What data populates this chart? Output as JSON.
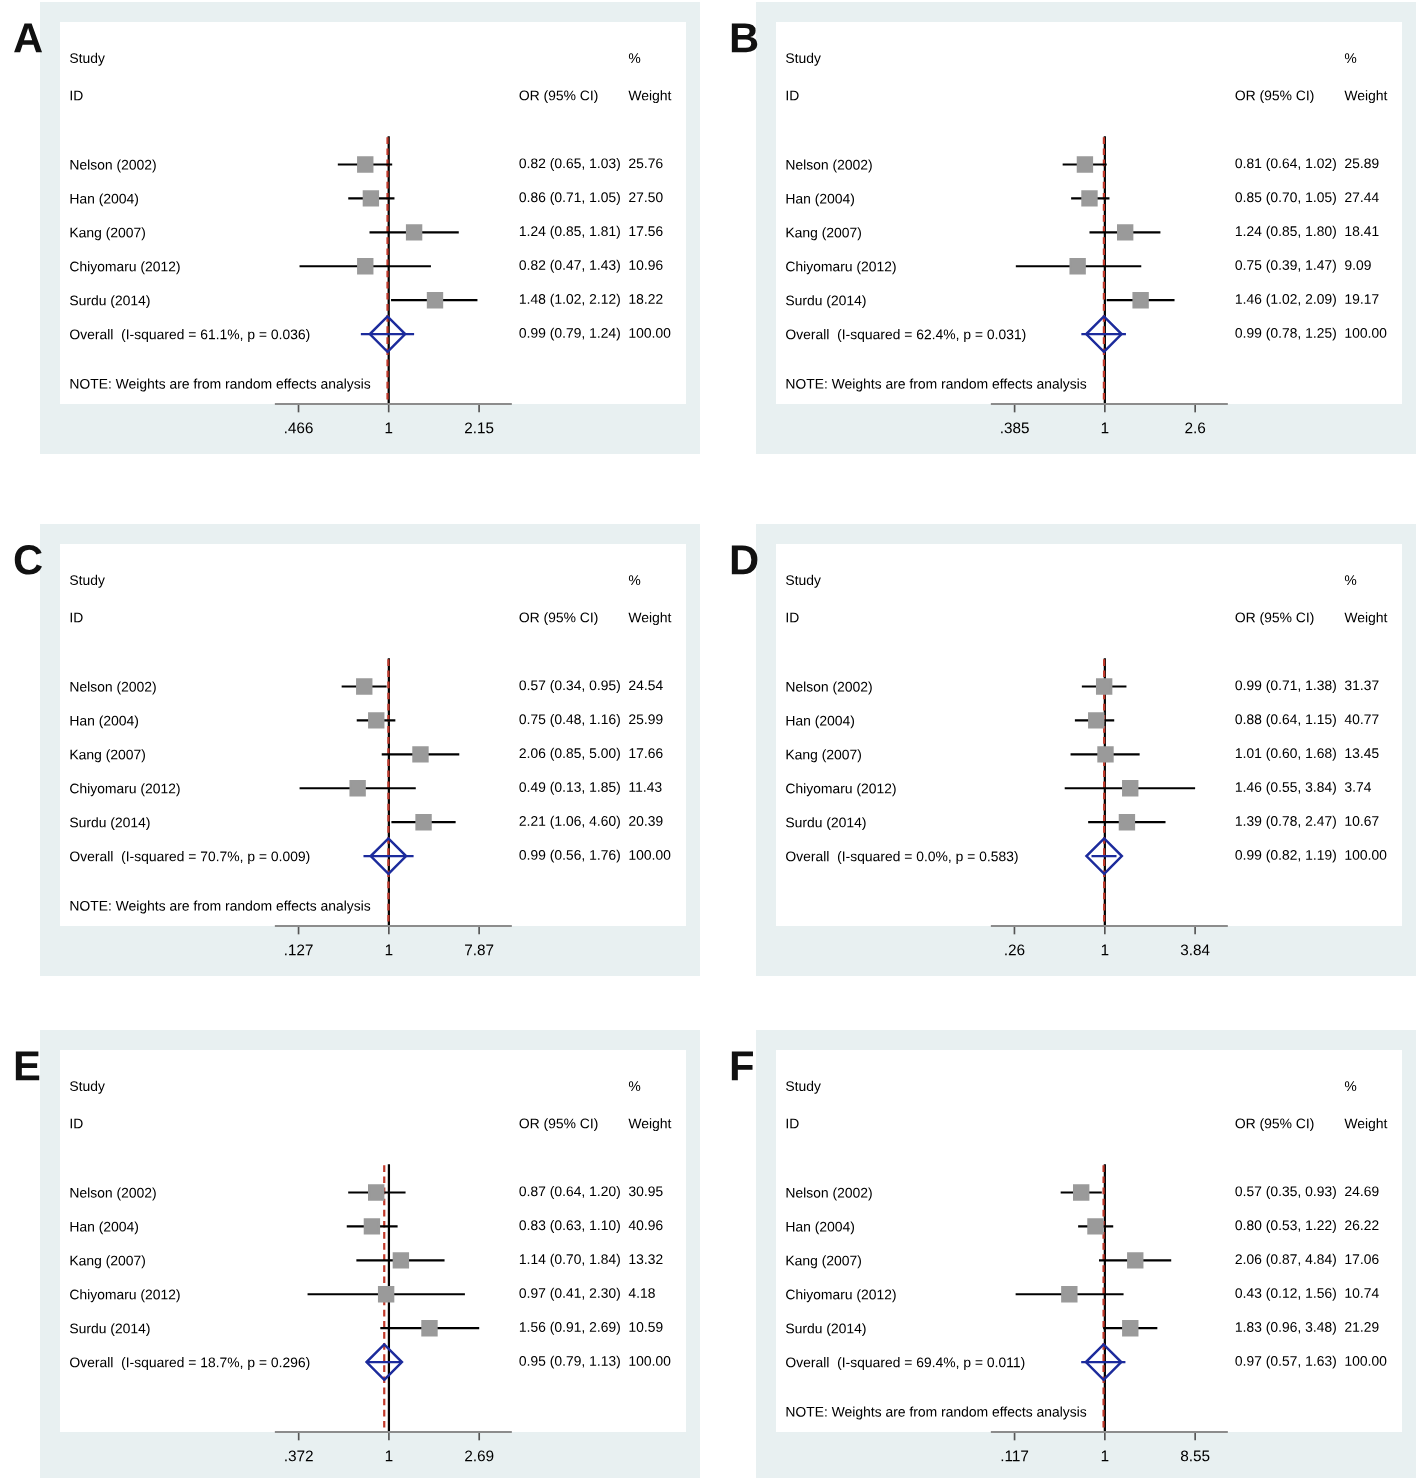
{
  "chart_data": [
    {
      "type": "scatter",
      "title": "A",
      "orientation": "horizontal",
      "log": "x",
      "xlim": [
        0.385,
        2.81
      ],
      "xticks": [
        {
          "value": 0.466,
          "label": ".466"
        },
        1,
        2.15
      ],
      "categories": [
        "Nelson (2002)",
        "Han (2004)",
        "Kang (2007)",
        "Chiyomaru (2012)",
        "Surdu (2014)",
        "Overall  (I-squared = 61.1%, p = 0.036)"
      ],
      "series": [
        {
          "color": "#9a9a9a",
          "marker": "square",
          "values": [
            0.82,
            0.86,
            1.24,
            0.82,
            1.48,
            null
          ],
          "errors": [
            [
              0.65,
              1.03
            ],
            [
              0.71,
              1.05
            ],
            [
              0.85,
              1.81
            ],
            [
              0.47,
              1.43
            ],
            [
              1.02,
              2.12
            ],
            null
          ],
          "value_labels": [
            "0.82 (0.65, 1.03)",
            "0.86 (0.71, 1.05)",
            "1.24 (0.85, 1.81)",
            "0.82 (0.47, 1.43)",
            "1.48 (1.02, 2.12)",
            null
          ]
        },
        {
          "color": "#1c2b9c",
          "marker": "diamond",
          "values": [
            null,
            null,
            null,
            null,
            null,
            0.99
          ],
          "errors": [
            null,
            null,
            null,
            null,
            null,
            [
              0.79,
              1.24
            ]
          ]
        }
      ],
      "ref_lines": [
        {
          "axis": "x",
          "value": 1,
          "color": "#000000",
          "line_style": "solid"
        },
        {
          "axis": "x",
          "value": 0.99,
          "color": "#c0392b",
          "line_style": "dashed"
        }
      ],
      "annotations": [
        "Study",
        "%",
        "ID",
        "OR (95% CI)",
        "Weight",
        "25.76",
        "27.50",
        "17.56",
        "10.96",
        "18.22",
        "100.00",
        "0.99 (0.79, 1.24)",
        "NOTE: Weights are from random effects analysis"
      ]
    },
    {
      "type": "scatter",
      "title": "B",
      "orientation": "horizontal",
      "log": "x",
      "xlim": [
        0.303,
        3.63
      ],
      "xticks": [
        {
          "value": 0.385,
          "label": ".385"
        },
        1,
        2.6
      ],
      "categories": [
        "Nelson (2002)",
        "Han (2004)",
        "Kang (2007)",
        "Chiyomaru (2012)",
        "Surdu (2014)",
        "Overall  (I-squared = 62.4%, p = 0.031)"
      ],
      "series": [
        {
          "color": "#9a9a9a",
          "marker": "square",
          "values": [
            0.81,
            0.85,
            1.24,
            0.75,
            1.46,
            null
          ],
          "errors": [
            [
              0.64,
              1.02
            ],
            [
              0.7,
              1.05
            ],
            [
              0.85,
              1.8
            ],
            [
              0.39,
              1.47
            ],
            [
              1.02,
              2.09
            ],
            null
          ],
          "value_labels": [
            "0.81 (0.64, 1.02)",
            "0.85 (0.70, 1.05)",
            "1.24 (0.85, 1.80)",
            "0.75 (0.39, 1.47)",
            "1.46 (1.02, 2.09)",
            null
          ]
        },
        {
          "color": "#1c2b9c",
          "marker": "diamond",
          "values": [
            null,
            null,
            null,
            null,
            null,
            0.99
          ],
          "errors": [
            null,
            null,
            null,
            null,
            null,
            [
              0.78,
              1.25
            ]
          ]
        }
      ],
      "ref_lines": [
        {
          "axis": "x",
          "value": 1,
          "color": "#000000",
          "line_style": "solid"
        },
        {
          "axis": "x",
          "value": 0.99,
          "color": "#c0392b",
          "line_style": "dashed"
        }
      ],
      "annotations": [
        "Study",
        "%",
        "ID",
        "OR (95% CI)",
        "Weight",
        "25.89",
        "27.44",
        "18.41",
        "9.09",
        "19.17",
        "100.00",
        "0.99 (0.78, 1.25)",
        "NOTE: Weights are from random effects analysis"
      ]
    },
    {
      "type": "scatter",
      "title": "C",
      "orientation": "horizontal",
      "log": "x",
      "xlim": [
        0.0758,
        16.2
      ],
      "xticks": [
        {
          "value": 0.127,
          "label": ".127"
        },
        1,
        7.87
      ],
      "categories": [
        "Nelson (2002)",
        "Han (2004)",
        "Kang (2007)",
        "Chiyomaru (2012)",
        "Surdu (2014)",
        "Overall  (I-squared = 70.7%, p = 0.009)"
      ],
      "series": [
        {
          "color": "#9a9a9a",
          "marker": "square",
          "values": [
            0.57,
            0.75,
            2.06,
            0.49,
            2.21,
            null
          ],
          "errors": [
            [
              0.34,
              0.95
            ],
            [
              0.48,
              1.16
            ],
            [
              0.85,
              5.0
            ],
            [
              0.13,
              1.85
            ],
            [
              1.06,
              4.6
            ],
            null
          ],
          "value_labels": [
            "0.57 (0.34, 0.95)",
            "0.75 (0.48, 1.16)",
            "2.06 (0.85, 5.00)",
            "0.49 (0.13, 1.85)",
            "2.21 (1.06, 4.60)",
            null
          ]
        },
        {
          "color": "#1c2b9c",
          "marker": "diamond",
          "values": [
            null,
            null,
            null,
            null,
            null,
            0.99
          ],
          "errors": [
            null,
            null,
            null,
            null,
            null,
            [
              0.56,
              1.76
            ]
          ]
        }
      ],
      "ref_lines": [
        {
          "axis": "x",
          "value": 1,
          "color": "#000000",
          "line_style": "solid"
        },
        {
          "axis": "x",
          "value": 0.99,
          "color": "#c0392b",
          "line_style": "dashed"
        }
      ],
      "annotations": [
        "Study",
        "%",
        "ID",
        "OR (95% CI)",
        "Weight",
        "24.54",
        "25.99",
        "17.66",
        "11.43",
        "20.39",
        "100.00",
        "0.99 (0.56, 1.76)",
        "NOTE: Weights are from random effects analysis"
      ]
    },
    {
      "type": "scatter",
      "title": "D",
      "orientation": "horizontal",
      "log": "x",
      "xlim": [
        0.186,
        6.15
      ],
      "xticks": [
        {
          "value": 0.26,
          "label": ".26"
        },
        1,
        3.84
      ],
      "categories": [
        "Nelson (2002)",
        "Han (2004)",
        "Kang (2007)",
        "Chiyomaru (2012)",
        "Surdu (2014)",
        "Overall  (I-squared = 0.0%, p = 0.583)"
      ],
      "series": [
        {
          "color": "#9a9a9a",
          "marker": "square",
          "values": [
            0.99,
            0.88,
            1.01,
            1.46,
            1.39,
            null
          ],
          "errors": [
            [
              0.71,
              1.38
            ],
            [
              0.64,
              1.15
            ],
            [
              0.6,
              1.68
            ],
            [
              0.55,
              3.84
            ],
            [
              0.78,
              2.47
            ],
            null
          ],
          "value_labels": [
            "0.99 (0.71, 1.38)",
            "0.88 (0.64, 1.15)",
            "1.01 (0.60, 1.68)",
            "1.46 (0.55, 3.84)",
            "1.39 (0.78, 2.47)",
            null
          ]
        },
        {
          "color": "#1c2b9c",
          "marker": "diamond",
          "values": [
            null,
            null,
            null,
            null,
            null,
            0.99
          ],
          "errors": [
            null,
            null,
            null,
            null,
            null,
            [
              0.82,
              1.19
            ]
          ]
        }
      ],
      "ref_lines": [
        {
          "axis": "x",
          "value": 1,
          "color": "#000000",
          "line_style": "solid"
        },
        {
          "axis": "x",
          "value": 0.99,
          "color": "#c0392b",
          "line_style": "dashed"
        }
      ],
      "annotations": [
        "Study",
        "%",
        "ID",
        "OR (95% CI)",
        "Weight",
        "31.37",
        "40.77",
        "13.45",
        "3.74",
        "10.67",
        "100.00",
        "0.99 (0.82, 1.19)"
      ]
    },
    {
      "type": "scatter",
      "title": "E",
      "orientation": "horizontal",
      "log": "x",
      "xlim": [
        0.29,
        3.8
      ],
      "xticks": [
        {
          "value": 0.372,
          "label": ".372"
        },
        1,
        2.69
      ],
      "categories": [
        "Nelson (2002)",
        "Han (2004)",
        "Kang (2007)",
        "Chiyomaru (2012)",
        "Surdu (2014)",
        "Overall  (I-squared = 18.7%, p = 0.296)"
      ],
      "series": [
        {
          "color": "#9a9a9a",
          "marker": "square",
          "values": [
            0.87,
            0.83,
            1.14,
            0.97,
            1.56,
            null
          ],
          "errors": [
            [
              0.64,
              1.2
            ],
            [
              0.63,
              1.1
            ],
            [
              0.7,
              1.84
            ],
            [
              0.41,
              2.3
            ],
            [
              0.91,
              2.69
            ],
            null
          ],
          "value_labels": [
            "0.87 (0.64, 1.20)",
            "0.83 (0.63, 1.10)",
            "1.14 (0.70, 1.84)",
            "0.97 (0.41, 2.30)",
            "1.56 (0.91, 2.69)",
            null
          ]
        },
        {
          "color": "#1c2b9c",
          "marker": "diamond",
          "values": [
            null,
            null,
            null,
            null,
            null,
            0.95
          ],
          "errors": [
            null,
            null,
            null,
            null,
            null,
            [
              0.79,
              1.13
            ]
          ]
        }
      ],
      "ref_lines": [
        {
          "axis": "x",
          "value": 1,
          "color": "#000000",
          "line_style": "solid"
        },
        {
          "axis": "x",
          "value": 0.95,
          "color": "#c0392b",
          "line_style": "dashed"
        }
      ],
      "annotations": [
        "Study",
        "%",
        "ID",
        "OR (95% CI)",
        "Weight",
        "30.95",
        "40.96",
        "13.32",
        "4.18",
        "10.59",
        "100.00",
        "0.95 (0.79, 1.13)"
      ]
    },
    {
      "type": "scatter",
      "title": "F",
      "orientation": "horizontal",
      "log": "x",
      "xlim": [
        0.0684,
        18.1
      ],
      "xticks": [
        {
          "value": 0.117,
          "label": ".117"
        },
        1,
        8.55
      ],
      "categories": [
        "Nelson (2002)",
        "Han (2004)",
        "Kang (2007)",
        "Chiyomaru (2012)",
        "Surdu (2014)",
        "Overall  (I-squared = 69.4%, p = 0.011)"
      ],
      "series": [
        {
          "color": "#9a9a9a",
          "marker": "square",
          "values": [
            0.57,
            0.8,
            2.06,
            0.43,
            1.83,
            null
          ],
          "errors": [
            [
              0.35,
              0.93
            ],
            [
              0.53,
              1.22
            ],
            [
              0.87,
              4.84
            ],
            [
              0.12,
              1.56
            ],
            [
              0.96,
              3.48
            ],
            null
          ],
          "value_labels": [
            "0.57 (0.35, 0.93)",
            "0.80 (0.53, 1.22)",
            "2.06 (0.87, 4.84)",
            "0.43 (0.12, 1.56)",
            "1.83 (0.96, 3.48)",
            null
          ]
        },
        {
          "color": "#1c2b9c",
          "marker": "diamond",
          "values": [
            null,
            null,
            null,
            null,
            null,
            0.97
          ],
          "errors": [
            null,
            null,
            null,
            null,
            null,
            [
              0.57,
              1.63
            ]
          ]
        }
      ],
      "ref_lines": [
        {
          "axis": "x",
          "value": 1,
          "color": "#000000",
          "line_style": "solid"
        },
        {
          "axis": "x",
          "value": 0.97,
          "color": "#c0392b",
          "line_style": "dashed"
        }
      ],
      "annotations": [
        "Study",
        "%",
        "ID",
        "OR (95% CI)",
        "Weight",
        "24.69",
        "26.22",
        "17.06",
        "10.74",
        "21.29",
        "100.00",
        "0.97 (0.57, 1.63)",
        "NOTE: Weights are from random effects analysis"
      ]
    }
  ]
}
